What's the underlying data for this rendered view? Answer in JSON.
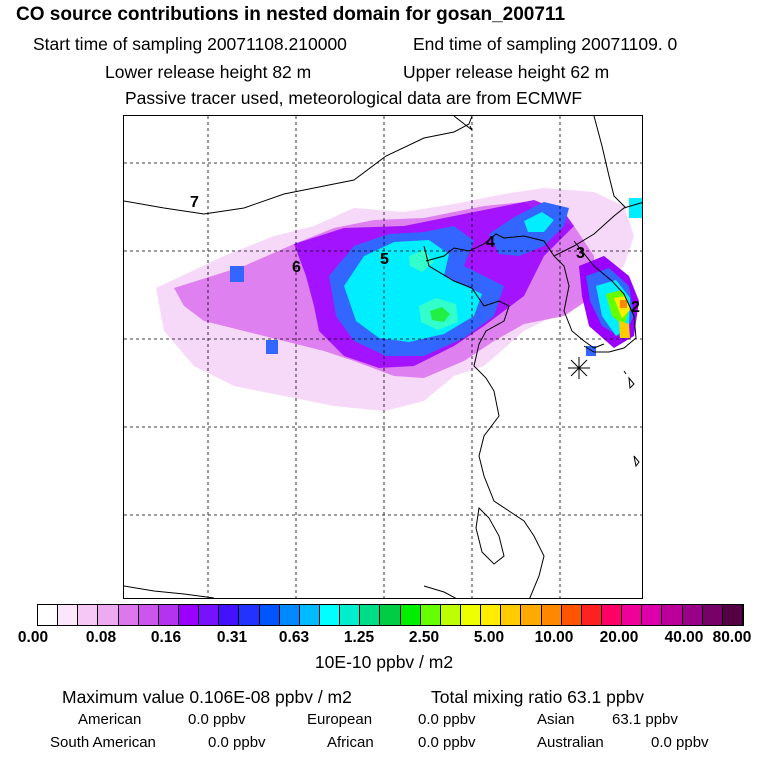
{
  "header": {
    "title": "CO  source contributions in nested domain for gosan_200711",
    "start_label": "Start time of sampling 20071108.210000",
    "end_label": "End time of sampling 20071109.     0",
    "lower_label": "Lower release height   82 m",
    "upper_label": "Upper release height   62 m",
    "note": "Passive tracer used, meteorological data are from ECMWF"
  },
  "map": {
    "region_labels": [
      "7",
      "6",
      "5",
      "4",
      "3",
      "2"
    ],
    "receptor_marker": "asterisk-icon",
    "colors": {
      "low": "#f6d8f8",
      "violet": "#cc44ee",
      "purple": "#9900ff",
      "blue": "#3366ff",
      "cyan": "#00eeff",
      "mint": "#33ffcc",
      "green": "#22ee44",
      "yellow": "#ffee00",
      "orange": "#ff8800"
    }
  },
  "colorbar": {
    "colors": [
      "#ffffff",
      "#fbe6fb",
      "#f5c8f5",
      "#eeaaf0",
      "#dd77ee",
      "#cc55ee",
      "#b333ee",
      "#9900ff",
      "#7711ff",
      "#4411ff",
      "#2233ff",
      "#0055ff",
      "#0088ff",
      "#00bbff",
      "#00ffff",
      "#00eecc",
      "#00dd88",
      "#00cc44",
      "#00ee00",
      "#66ff00",
      "#bbff00",
      "#eeff00",
      "#ffee00",
      "#ffcc00",
      "#ffaa00",
      "#ff8800",
      "#ff5500",
      "#ff2222",
      "#ff0066",
      "#ee0099",
      "#dd00aa",
      "#bb0099",
      "#990088",
      "#770066",
      "#550044"
    ],
    "ticks": [
      "0.00",
      "0.08",
      "0.16",
      "0.31",
      "0.63",
      "1.25",
      "2.50",
      "5.00",
      "10.00",
      "20.00",
      "40.00",
      "80.00"
    ],
    "unit": "10E-10 ppbv / m2"
  },
  "footer": {
    "max_value": "Maximum value  0.106E-08 ppbv / m2",
    "total": "Total mixing ratio       63.1 ppbv",
    "american": "American",
    "american_val": "0.0 ppbv",
    "european": "European",
    "european_val": "0.0 ppbv",
    "asian": "Asian",
    "asian_val": "63.1 ppbv",
    "south_american": "South American",
    "south_american_val": "0.0 ppbv",
    "african": "African",
    "african_val": "0.0 ppbv",
    "australian": "Australian",
    "australian_val": "0.0 ppbv"
  }
}
